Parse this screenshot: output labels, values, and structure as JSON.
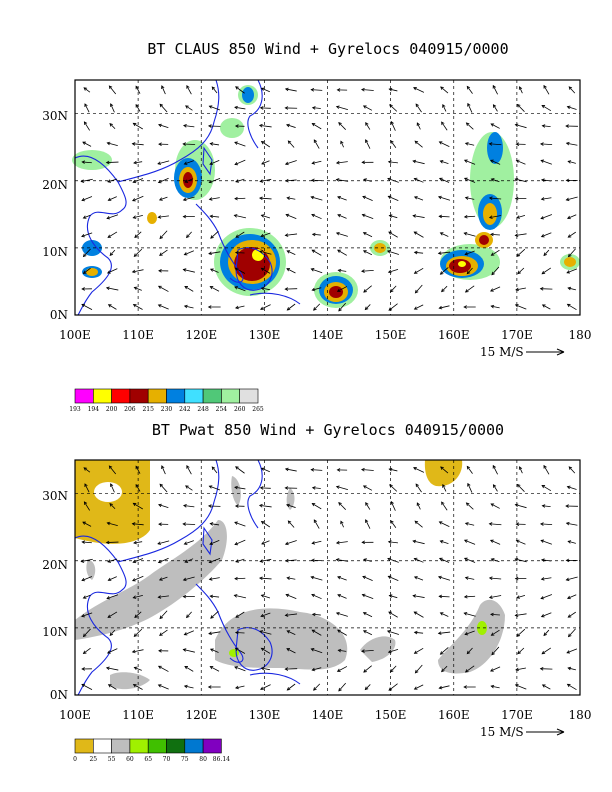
{
  "panels": [
    {
      "title": "BT CLAUS 850 Wind + Gyrelocs 040915/0000",
      "lon_labels": [
        "100E",
        "110E",
        "120E",
        "130E",
        "140E",
        "150E",
        "160E",
        "170E",
        "180"
      ],
      "lat_labels": [
        "30N",
        "20N",
        "10N",
        "0N"
      ],
      "ref_vector_label": "15 M/S",
      "colorbar": {
        "labels": [
          "193",
          "194",
          "200",
          "206",
          "215",
          "230",
          "242",
          "248",
          "254",
          "260",
          "265"
        ],
        "colors": [
          "#ff00ff",
          "#ffff00",
          "#ff0000",
          "#a00000",
          "#e6b000",
          "#0080e0",
          "#40e0ff",
          "#50c878",
          "#a0f0a0",
          "#e0e0e0"
        ]
      }
    },
    {
      "title": "BT Pwat 850 Wind + Gyrelocs 040915/0000",
      "lon_labels": [
        "100E",
        "110E",
        "120E",
        "130E",
        "140E",
        "150E",
        "160E",
        "170E",
        "180"
      ],
      "lat_labels": [
        "30N",
        "20N",
        "10N",
        "0N"
      ],
      "ref_vector_label": "15 M/S",
      "colorbar": {
        "labels": [
          "0",
          "25",
          "55",
          "60",
          "65",
          "70",
          "75",
          "80",
          "86.14"
        ],
        "colors": [
          "#e0b818",
          "#ffffff",
          "#bebebe",
          "#a0f000",
          "#40c000",
          "#107010",
          "#0078d0",
          "#8000c0"
        ]
      }
    }
  ],
  "map_data": {
    "lon_range": [
      100,
      180
    ],
    "lat_range": [
      0,
      35
    ],
    "colors": {
      "coastline": "#1a28e0",
      "claus_cold_core": "#a00000",
      "claus_cloud": "#e6b000",
      "pwat_moist": "#bebebe",
      "pwat_dry": "#e0b818",
      "pwat_high": "#a0f000"
    }
  }
}
